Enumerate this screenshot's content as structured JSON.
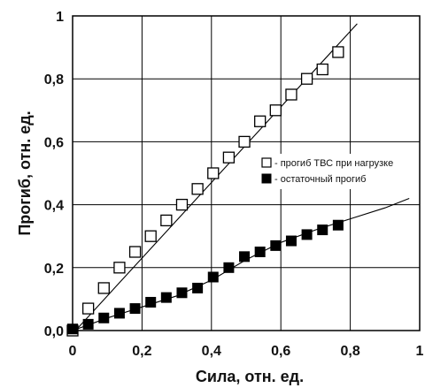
{
  "chart_data": {
    "type": "scatter",
    "xlabel": "Сила, отн. ед.",
    "ylabel": "Прогиб, отн. ед.",
    "xlim": [
      0,
      1
    ],
    "ylim": [
      0,
      1
    ],
    "x_ticks": [
      "0",
      "0,2",
      "0,4",
      "0,6",
      "0,8",
      "1"
    ],
    "y_ticks": [
      "0,0",
      "0,2",
      "0,4",
      "0,6",
      "0,8",
      "1"
    ],
    "grid": true,
    "legend_position": "right-middle",
    "series": [
      {
        "name": "- прогиб ТВС при нагрузке",
        "marker": "hollow-square",
        "color": "#000000",
        "points": [
          [
            0.0,
            0.0
          ],
          [
            0.045,
            0.07
          ],
          [
            0.09,
            0.135
          ],
          [
            0.135,
            0.2
          ],
          [
            0.18,
            0.25
          ],
          [
            0.225,
            0.3
          ],
          [
            0.27,
            0.35
          ],
          [
            0.315,
            0.4
          ],
          [
            0.36,
            0.45
          ],
          [
            0.405,
            0.5
          ],
          [
            0.45,
            0.55
          ],
          [
            0.495,
            0.6
          ],
          [
            0.54,
            0.665
          ],
          [
            0.585,
            0.7
          ],
          [
            0.63,
            0.75
          ],
          [
            0.675,
            0.8
          ],
          [
            0.72,
            0.83
          ],
          [
            0.765,
            0.885
          ]
        ],
        "fit_line": [
          [
            0.0,
            -0.01
          ],
          [
            0.82,
            0.975
          ]
        ]
      },
      {
        "name": "- остаточный прогиб",
        "marker": "filled-square",
        "color": "#000000",
        "points": [
          [
            0.0,
            0.005
          ],
          [
            0.045,
            0.02
          ],
          [
            0.09,
            0.04
          ],
          [
            0.135,
            0.055
          ],
          [
            0.18,
            0.07
          ],
          [
            0.225,
            0.09
          ],
          [
            0.27,
            0.105
          ],
          [
            0.315,
            0.12
          ],
          [
            0.36,
            0.135
          ],
          [
            0.405,
            0.17
          ],
          [
            0.45,
            0.2
          ],
          [
            0.495,
            0.235
          ],
          [
            0.54,
            0.25
          ],
          [
            0.585,
            0.27
          ],
          [
            0.63,
            0.285
          ],
          [
            0.675,
            0.305
          ],
          [
            0.72,
            0.32
          ],
          [
            0.765,
            0.335
          ]
        ],
        "fit_curve": [
          [
            0.0,
            0.0
          ],
          [
            0.1,
            0.04
          ],
          [
            0.2,
            0.075
          ],
          [
            0.3,
            0.11
          ],
          [
            0.4,
            0.16
          ],
          [
            0.5,
            0.225
          ],
          [
            0.6,
            0.28
          ],
          [
            0.7,
            0.32
          ],
          [
            0.8,
            0.355
          ],
          [
            0.9,
            0.39
          ],
          [
            0.97,
            0.42
          ]
        ]
      }
    ]
  }
}
